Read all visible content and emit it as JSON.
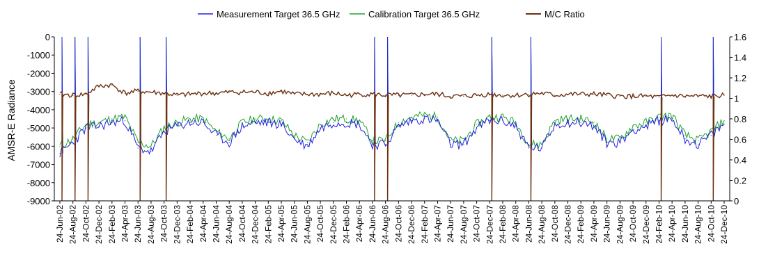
{
  "chart_data": {
    "type": "line",
    "ylabel_left": "AMSR-E Radiance",
    "ylim_left": [
      -9000,
      0
    ],
    "yticks_left": [
      "0",
      "-1000",
      "-2000",
      "-3000",
      "-4000",
      "-5000",
      "-6000",
      "-7000",
      "-8000",
      "-9000"
    ],
    "ylim_right": [
      0,
      1.6
    ],
    "yticks_right": [
      "0",
      "0.2",
      "0.4",
      "0.6",
      "0.8",
      "1",
      "1.2",
      "1.4",
      "1.6"
    ],
    "legend_position": "top",
    "grid": false,
    "x_categories": [
      "24-Jun-02",
      "24-Aug-02",
      "24-Oct-02",
      "24-Dec-02",
      "24-Feb-03",
      "24-Apr-03",
      "24-Jun-03",
      "24-Aug-03",
      "24-Oct-03",
      "24-Dec-03",
      "24-Feb-04",
      "24-Apr-04",
      "24-Jun-04",
      "24-Aug-04",
      "24-Oct-04",
      "24-Dec-04",
      "24-Feb-05",
      "24-Apr-05",
      "24-Jun-05",
      "24-Aug-05",
      "24-Oct-05",
      "24-Dec-05",
      "24-Feb-06",
      "24-Apr-06",
      "24-Jun-06",
      "24-Aug-06",
      "24-Oct-06",
      "24-Dec-06",
      "24-Feb-07",
      "24-Apr-07",
      "24-Jun-07",
      "24-Aug-07",
      "24-Oct-07",
      "24-Dec-07",
      "24-Feb-08",
      "24-Apr-08",
      "24-Jun-08",
      "24-Aug-08",
      "24-Oct-08",
      "24-Dec-08",
      "24-Feb-09",
      "24-Apr-09",
      "24-Jun-09",
      "24-Aug-09",
      "24-Oct-09",
      "24-Dec-09",
      "24-Feb-10",
      "24-Apr-10",
      "24-Jun-10",
      "24-Aug-10",
      "24-Oct-10",
      "24-Dec-10"
    ],
    "series": [
      {
        "name": "Measurement Target 36.5 GHz",
        "color": "#2020e0",
        "axis": "left",
        "values": [
          -6400,
          -5800,
          -5000,
          -4900,
          -4700,
          -4600,
          -6100,
          -6300,
          -5200,
          -4900,
          -4700,
          -4700,
          -5400,
          -5800,
          -4900,
          -4700,
          -4700,
          -4800,
          -5600,
          -6000,
          -5000,
          -4700,
          -4700,
          -4800,
          -5900,
          -5900,
          -4900,
          -4600,
          -4500,
          -4600,
          -5900,
          -5900,
          -5000,
          -4600,
          -4600,
          -4900,
          -6100,
          -6100,
          -4800,
          -4700,
          -4700,
          -4900,
          -5800,
          -5800,
          -5100,
          -4900,
          -4600,
          -4500,
          -5600,
          -5900,
          -5400,
          -4800
        ]
      },
      {
        "name": "Calibration Target 36.5 GHz",
        "color": "#20a030",
        "axis": "left",
        "values": [
          -6000,
          -5600,
          -4800,
          -4700,
          -4500,
          -4400,
          -5800,
          -6000,
          -5000,
          -4700,
          -4500,
          -4500,
          -5200,
          -5600,
          -4700,
          -4500,
          -4500,
          -4600,
          -5400,
          -5800,
          -4800,
          -4500,
          -4500,
          -4600,
          -5700,
          -5700,
          -4700,
          -4400,
          -4300,
          -4400,
          -5700,
          -5700,
          -4800,
          -4400,
          -4400,
          -4700,
          -5900,
          -5900,
          -4600,
          -4500,
          -4500,
          -4700,
          -5600,
          -5600,
          -4900,
          -4700,
          -4400,
          -4300,
          -5400,
          -5700,
          -5200,
          -4600
        ]
      },
      {
        "name": "M/C Ratio",
        "color": "#6b3212",
        "axis": "right",
        "values": [
          1.04,
          1.03,
          1.04,
          1.12,
          1.13,
          1.05,
          1.07,
          1.06,
          1.05,
          1.03,
          1.04,
          1.05,
          1.05,
          1.06,
          1.06,
          1.06,
          1.05,
          1.07,
          1.04,
          1.04,
          1.04,
          1.05,
          1.03,
          1.04,
          1.04,
          1.03,
          1.03,
          1.03,
          1.04,
          1.04,
          1.02,
          1.02,
          1.03,
          1.04,
          1.03,
          1.03,
          1.04,
          1.05,
          1.03,
          1.04,
          1.04,
          1.04,
          1.03,
          1.02,
          1.02,
          1.02,
          1.01,
          1.03,
          1.02,
          1.02,
          1.02,
          1.03
        ]
      }
    ],
    "spikes_measurement_calibration": [
      {
        "at": "24-Jun-02",
        "value": 0
      },
      {
        "at": "24-Aug-02",
        "value": 0
      },
      {
        "at": "24-Oct-02",
        "value": 0
      },
      {
        "at": "24-Jun-03",
        "value": 0
      },
      {
        "at": "24-Oct-03",
        "value": 0
      },
      {
        "at": "24-Jun-06",
        "value": 0
      },
      {
        "at": "24-Aug-06",
        "value": 0
      },
      {
        "at": "24-Dec-07",
        "value": 0
      },
      {
        "at": "24-Jun-08",
        "value": 0
      },
      {
        "at": "24-Feb-10",
        "value": 0
      },
      {
        "at": "24-Oct-10",
        "value": 0
      }
    ],
    "spikes_ratio": [
      {
        "at": "24-Jun-02",
        "value": 0
      },
      {
        "at": "24-Aug-02",
        "value": 0
      },
      {
        "at": "24-Oct-02",
        "value": 0
      },
      {
        "at": "24-Jun-03",
        "value": 0
      },
      {
        "at": "24-Oct-03",
        "value": 0
      },
      {
        "at": "24-Jun-06",
        "value": 0
      },
      {
        "at": "24-Aug-06",
        "value": 0
      },
      {
        "at": "24-Dec-07",
        "value": 0
      },
      {
        "at": "24-Jun-08",
        "value": 0
      },
      {
        "at": "24-Feb-10",
        "value": 0
      },
      {
        "at": "24-Oct-10",
        "value": 0
      }
    ]
  }
}
